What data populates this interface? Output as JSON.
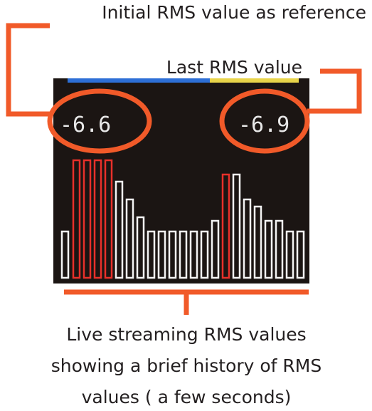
{
  "annotations": {
    "initial": "Initial RMS value as reference",
    "last": "Last RMS value",
    "live": [
      "Live streaming RMS values",
      "showing a brief history of RMS",
      "values ( a few seconds)"
    ]
  },
  "display": {
    "initial_value": "-6.6",
    "last_value": "-6.9"
  }
}
